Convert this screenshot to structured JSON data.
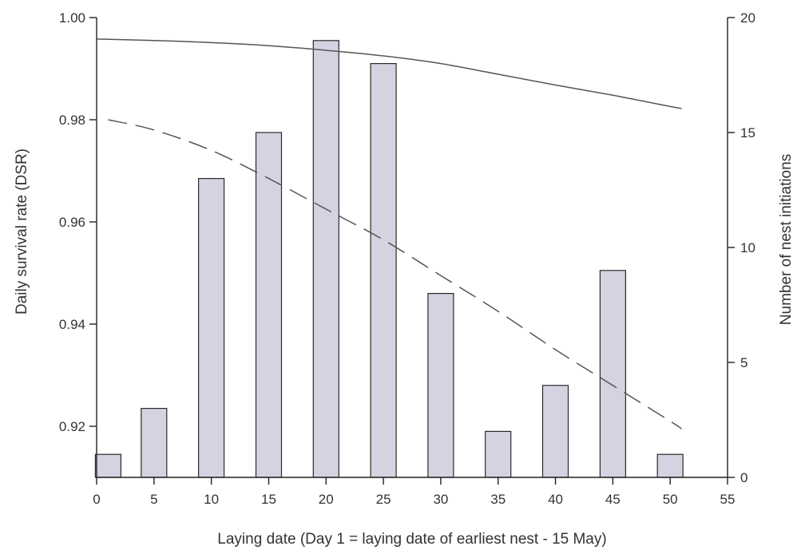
{
  "chart_data": {
    "type": "bar",
    "xlabel": "Laying date (Day 1 = laying date of earliest nest - 15 May)",
    "ylabel_left": "Daily survival rate (DSR)",
    "ylabel_right": "Number of nest initiations",
    "xlim": [
      0,
      55
    ],
    "xticks": [
      0,
      5,
      10,
      15,
      20,
      25,
      30,
      35,
      40,
      45,
      50,
      55
    ],
    "ylim_left": [
      0.91,
      1.0
    ],
    "yticks_left": [
      "0.92",
      "0.94",
      "0.96",
      "0.98",
      "1.00"
    ],
    "ylim_right": [
      0,
      20
    ],
    "yticks_right": [
      0,
      5,
      10,
      15,
      20
    ],
    "grid": false,
    "bars": {
      "axis": "right",
      "x": [
        1,
        5,
        10,
        15,
        20,
        25,
        30,
        35,
        40,
        45,
        50
      ],
      "values": [
        1,
        3,
        13,
        15,
        19,
        18,
        8,
        2,
        4,
        9,
        1
      ]
    },
    "series": [
      {
        "style": "solid",
        "axis": "left",
        "x": [
          0,
          5,
          10,
          15,
          20,
          25,
          30,
          35,
          40,
          45,
          50,
          51
        ],
        "values": [
          0.9958,
          0.9955,
          0.9951,
          0.9945,
          0.9936,
          0.9925,
          0.991,
          0.9889,
          0.9868,
          0.9848,
          0.9826,
          0.9822
        ]
      },
      {
        "style": "dashed",
        "axis": "left",
        "x": [
          1,
          5,
          10,
          15,
          20,
          25,
          30,
          35,
          40,
          45,
          50,
          51
        ],
        "values": [
          0.98,
          0.978,
          0.974,
          0.9685,
          0.9625,
          0.9565,
          0.9495,
          0.9425,
          0.935,
          0.928,
          0.921,
          0.9195
        ]
      }
    ]
  }
}
